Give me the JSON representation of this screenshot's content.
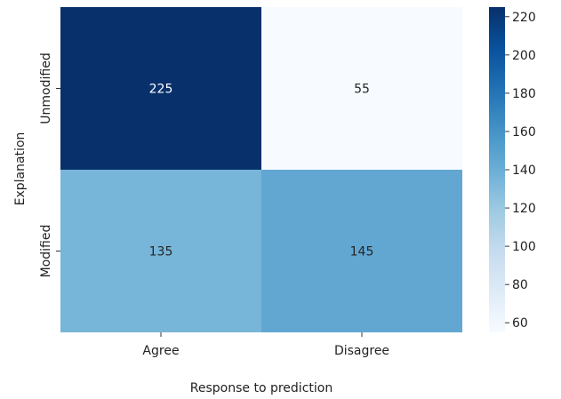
{
  "chart_data": {
    "type": "heatmap",
    "x_categories": [
      "Agree",
      "Disagree"
    ],
    "y_categories": [
      "Unmodified",
      "Modified"
    ],
    "values": [
      [
        225,
        55
      ],
      [
        135,
        145
      ]
    ],
    "xlabel": "Response to prediction",
    "ylabel": "Explanation",
    "colormap": "Blues",
    "color_range": [
      55,
      225
    ],
    "colorbar_ticks": [
      60,
      80,
      100,
      120,
      140,
      160,
      180,
      200,
      220
    ],
    "colors": {
      "cell_225": "#08306b",
      "cell_55": "#f7fbff",
      "cell_135": "#7ab6d9",
      "cell_145": "#58a1cf"
    }
  }
}
